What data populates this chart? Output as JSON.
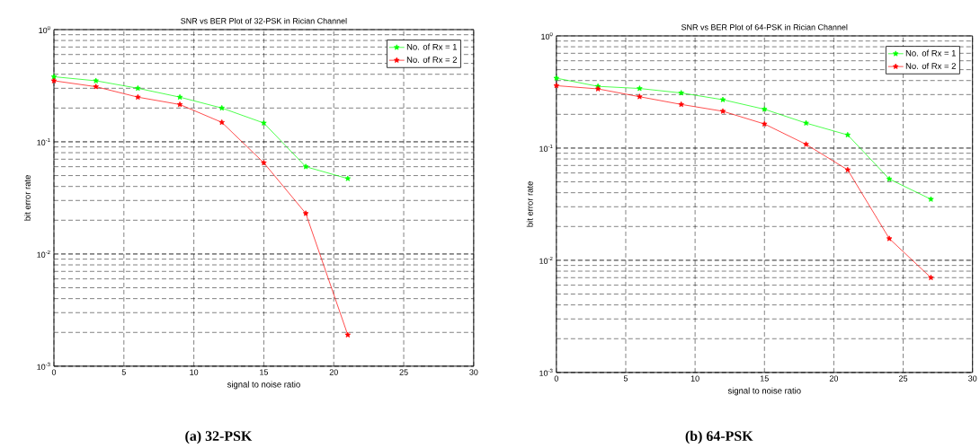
{
  "chart_data": [
    {
      "type": "line",
      "title": "SNR vs BER Plot of 32-PSK in Rician Channel",
      "xlabel": "signal to noise ratio",
      "ylabel": "bit error rate",
      "x": [
        0,
        3,
        6,
        9,
        12,
        15,
        18,
        21
      ],
      "series": [
        {
          "name": "No. of Rx = 1",
          "color": "#00ff00",
          "values": [
            0.38,
            0.35,
            0.3,
            0.25,
            0.2,
            0.147,
            0.06,
            0.047
          ]
        },
        {
          "name": "No. of Rx = 2",
          "color": "#ff0000",
          "values": [
            0.35,
            0.31,
            0.25,
            0.215,
            0.149,
            0.065,
            0.023,
            0.0019
          ]
        }
      ],
      "xlim": [
        0,
        30
      ],
      "xticks": [
        0,
        5,
        10,
        15,
        20,
        25,
        30
      ],
      "ylim": [
        0.001,
        1
      ],
      "yticks": [
        {
          "value": 0.001,
          "label": "10$^{-3}$"
        },
        {
          "value": 0.01,
          "label": "10$^{-2}$"
        },
        {
          "value": 0.1,
          "label": "10$^{-1}$"
        },
        {
          "value": 1,
          "label": "10$^{0}$"
        }
      ],
      "log": "y",
      "grid": true,
      "legend": "top right",
      "marker": "star",
      "annotations": [
        "(a) 32-PSK"
      ]
    },
    {
      "type": "line",
      "title": "SNR vs BER Plot of 64-PSK in Rician Channel",
      "xlabel": "signal to noise ratio",
      "ylabel": "bit error rate",
      "x": [
        0,
        3,
        6,
        9,
        12,
        15,
        18,
        21,
        24,
        27
      ],
      "series": [
        {
          "name": "No. of Rx = 1",
          "color": "#00ff00",
          "values": [
            0.42,
            0.355,
            0.34,
            0.31,
            0.27,
            0.222,
            0.167,
            0.131,
            0.053,
            0.035
          ]
        },
        {
          "name": "No. of Rx = 2",
          "color": "#ff0000",
          "values": [
            0.36,
            0.337,
            0.287,
            0.245,
            0.213,
            0.164,
            0.108,
            0.064,
            0.0156,
            0.007
          ]
        }
      ],
      "xlim": [
        0,
        30
      ],
      "xticks": [
        0,
        5,
        10,
        15,
        20,
        25,
        30
      ],
      "ylim": [
        0.001,
        1
      ],
      "yticks": [
        {
          "value": 0.001,
          "label": "10$^{-3}$"
        },
        {
          "value": 0.01,
          "label": "10$^{-2}$"
        },
        {
          "value": 0.1,
          "label": "10$^{-1}$"
        },
        {
          "value": 1,
          "label": "10$^{0}$"
        }
      ],
      "log": "y",
      "grid": true,
      "legend": "top right",
      "marker": "star",
      "annotations": [
        "(b) 64-PSK"
      ]
    }
  ]
}
